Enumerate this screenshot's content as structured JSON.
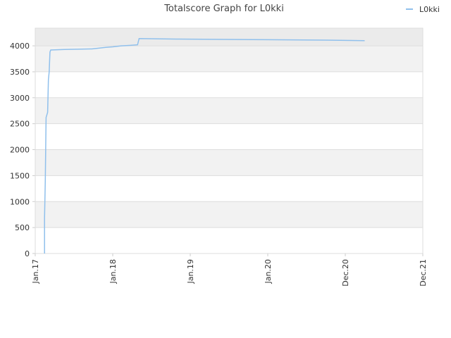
{
  "chart_data": {
    "type": "line",
    "title": "Totalscore Graph for L0kki",
    "x": [
      0.12,
      0.12,
      0.13,
      0.14,
      0.16,
      0.17,
      0.18,
      0.19,
      0.2,
      0.38,
      0.73,
      0.91,
      1.0,
      1.11,
      1.23,
      1.32,
      1.34,
      1.82,
      2.8,
      3.77,
      4.25
    ],
    "series": [
      {
        "name": "L0kki",
        "color": "#90c0ec",
        "values": [
          0,
          680,
          1420,
          2620,
          2720,
          3350,
          3500,
          3880,
          3920,
          3930,
          3940,
          3970,
          3980,
          4000,
          4010,
          4020,
          4140,
          4130,
          4120,
          4110,
          4100
        ]
      }
    ],
    "xlim": [
      0,
      5
    ],
    "xticks": [
      {
        "value": 0,
        "label": "Jan.17"
      },
      {
        "value": 1,
        "label": "Jan.18"
      },
      {
        "value": 2,
        "label": "Jan.19"
      },
      {
        "value": 3,
        "label": "Jan.20"
      },
      {
        "value": 4,
        "label": "Dec.20"
      },
      {
        "value": 5,
        "label": "Dec.21"
      }
    ],
    "ylim": [
      0,
      4340
    ],
    "yticks": [
      0,
      500,
      1000,
      1500,
      2000,
      2500,
      3000,
      3500,
      4000
    ],
    "grid": true,
    "legend": "top-right"
  }
}
